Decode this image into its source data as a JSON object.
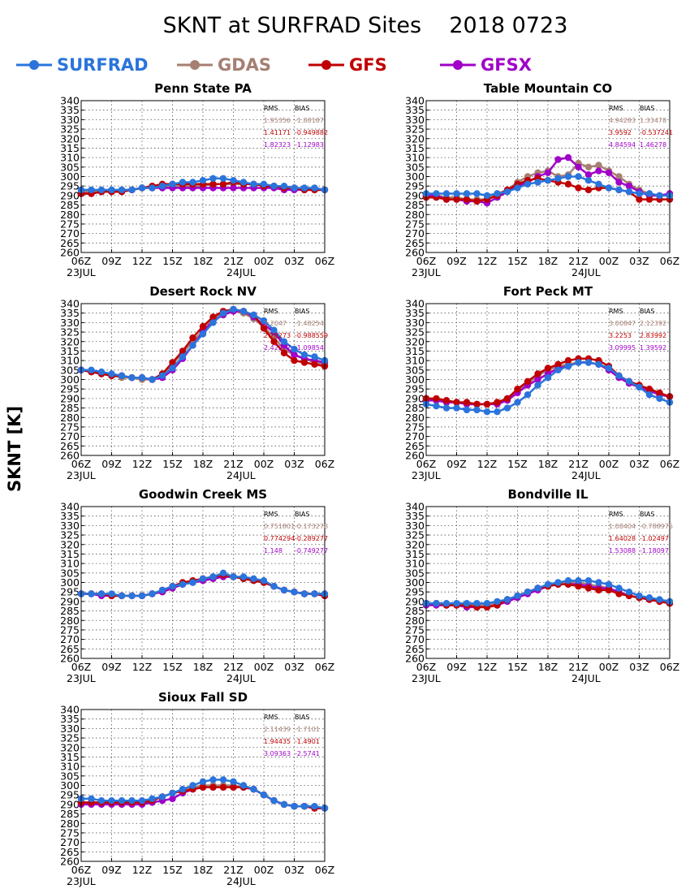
{
  "title": "SKNT at SURFRAD Sites    2018 0723",
  "ylabel": "SKNT [K]",
  "colors": {
    "SURFRAD": "#2a74dc",
    "GDAS": "#a67f72",
    "GFS": "#c00000",
    "GFSX": "#a000c8"
  },
  "legend": [
    "SURFRAD",
    "GDAS",
    "GFS",
    "GFSX"
  ],
  "stats_headers": {
    "rms": "RMS",
    "bias": "BIAS"
  },
  "chart_data": [
    {
      "type": "line",
      "title": "Penn State PA",
      "ylim": [
        260,
        340
      ],
      "x_ticks": [
        "06Z",
        "09Z",
        "12Z",
        "15Z",
        "18Z",
        "21Z",
        "00Z",
        "03Z",
        "06Z"
      ],
      "date_labels": [
        "23JUL",
        "24JUL"
      ],
      "series": [
        {
          "name": "SURFRAD",
          "values": [
            293,
            293,
            293,
            293,
            293,
            293,
            294,
            294,
            295,
            296,
            297,
            297,
            298,
            299,
            299,
            298,
            297,
            296,
            296,
            295,
            295,
            294,
            294,
            294,
            293
          ]
        },
        {
          "name": "GDAS",
          "values": [
            292,
            292,
            292,
            292,
            293,
            293,
            294,
            294,
            295,
            295,
            295,
            295,
            295,
            296,
            296,
            296,
            296,
            296,
            295,
            295,
            294,
            294,
            293,
            293,
            293
          ]
        },
        {
          "name": "GFS",
          "values": [
            291,
            291,
            292,
            292,
            292,
            293,
            294,
            295,
            296,
            296,
            296,
            296,
            296,
            296,
            296,
            297,
            296,
            296,
            295,
            295,
            294,
            294,
            293,
            293,
            293
          ]
        },
        {
          "name": "GFSX",
          "values": [
            291,
            291,
            292,
            292,
            292,
            293,
            294,
            294,
            294,
            294,
            294,
            294,
            294,
            294,
            294,
            294,
            294,
            294,
            294,
            294,
            293,
            293,
            293,
            293,
            293
          ]
        }
      ],
      "stats": [
        {
          "series": "GDAS",
          "rms": "1.95356",
          "bias": "-1.88187"
        },
        {
          "series": "GFS",
          "rms": "1.41171",
          "bias": "-0.949882"
        },
        {
          "series": "GFSX",
          "rms": "1.82323",
          "bias": "-1.12983"
        }
      ]
    },
    {
      "type": "line",
      "title": "Table Mountain CO",
      "ylim": [
        260,
        340
      ],
      "x_ticks": [
        "06Z",
        "09Z",
        "12Z",
        "15Z",
        "18Z",
        "21Z",
        "00Z",
        "03Z",
        "06Z"
      ],
      "date_labels": [
        "23JUL",
        "24JUL"
      ],
      "series": [
        {
          "name": "SURFRAD",
          "values": [
            291,
            291,
            291,
            291,
            291,
            291,
            290,
            291,
            292,
            294,
            296,
            297,
            298,
            299,
            300,
            300,
            298,
            296,
            294,
            293,
            292,
            291,
            291,
            290,
            290
          ]
        },
        {
          "name": "GDAS",
          "values": [
            290,
            290,
            289,
            289,
            288,
            288,
            288,
            291,
            293,
            297,
            300,
            302,
            303,
            300,
            301,
            307,
            305,
            306,
            303,
            300,
            296,
            293,
            291,
            290,
            290
          ]
        },
        {
          "name": "GFS",
          "values": [
            289,
            289,
            288,
            288,
            288,
            287,
            288,
            290,
            293,
            296,
            298,
            299,
            298,
            297,
            296,
            294,
            293,
            294,
            294,
            293,
            292,
            288,
            288,
            288,
            288
          ]
        },
        {
          "name": "GFSX",
          "values": [
            290,
            290,
            288,
            288,
            287,
            287,
            286,
            289,
            292,
            295,
            297,
            300,
            302,
            309,
            310,
            305,
            301,
            303,
            302,
            297,
            295,
            292,
            290,
            290,
            291
          ]
        }
      ],
      "stats": [
        {
          "series": "GDAS",
          "rms": "4.94283",
          "bias": "1.33478"
        },
        {
          "series": "GFS",
          "rms": "3.9592",
          "bias": "-0.537241"
        },
        {
          "series": "GFSX",
          "rms": "4.84594",
          "bias": "1.46278"
        }
      ]
    },
    {
      "type": "line",
      "title": "Desert Rock NV",
      "ylim": [
        260,
        340
      ],
      "x_ticks": [
        "06Z",
        "09Z",
        "12Z",
        "15Z",
        "18Z",
        "21Z",
        "00Z",
        "03Z",
        "06Z"
      ],
      "date_labels": [
        "23JUL",
        "24JUL"
      ],
      "series": [
        {
          "name": "SURFRAD",
          "values": [
            305,
            305,
            304,
            303,
            302,
            301,
            301,
            300,
            302,
            306,
            312,
            318,
            324,
            330,
            335,
            337,
            336,
            334,
            331,
            326,
            320,
            316,
            313,
            312,
            310
          ]
        },
        {
          "name": "GDAS",
          "values": [
            305,
            304,
            303,
            302,
            301,
            301,
            300,
            300,
            302,
            308,
            314,
            320,
            326,
            332,
            335,
            336,
            335,
            332,
            328,
            322,
            316,
            313,
            311,
            309,
            308
          ]
        },
        {
          "name": "GFS",
          "values": [
            305,
            304,
            303,
            302,
            302,
            301,
            301,
            300,
            303,
            309,
            315,
            322,
            328,
            333,
            336,
            337,
            336,
            334,
            327,
            320,
            314,
            310,
            309,
            308,
            307
          ]
        },
        {
          "name": "GFSX",
          "values": [
            305,
            304,
            303,
            302,
            302,
            301,
            301,
            300,
            301,
            305,
            311,
            318,
            325,
            331,
            334,
            336,
            336,
            333,
            329,
            325,
            318,
            313,
            311,
            310,
            309
          ]
        }
      ],
      "stats": [
        {
          "series": "GDAS",
          "rms": "2.2047",
          "bias": "-1.48254"
        },
        {
          "series": "GFS",
          "rms": "2.28273",
          "bias": "-0.988559"
        },
        {
          "series": "GFSX",
          "rms": "2.42277",
          "bias": "-1.09854"
        }
      ]
    },
    {
      "type": "line",
      "title": "Fort Peck MT",
      "ylim": [
        260,
        340
      ],
      "x_ticks": [
        "06Z",
        "09Z",
        "12Z",
        "15Z",
        "18Z",
        "21Z",
        "00Z",
        "03Z",
        "06Z"
      ],
      "date_labels": [
        "23JUL",
        "24JUL"
      ],
      "series": [
        {
          "name": "SURFRAD",
          "values": [
            287,
            286,
            285,
            285,
            284,
            284,
            283,
            283,
            285,
            288,
            292,
            297,
            301,
            305,
            307,
            309,
            309,
            308,
            306,
            302,
            299,
            296,
            292,
            290,
            288
          ]
        },
        {
          "name": "GDAS",
          "values": [
            290,
            289,
            288,
            288,
            287,
            287,
            287,
            288,
            290,
            294,
            298,
            302,
            305,
            307,
            308,
            309,
            309,
            308,
            305,
            302,
            299,
            297,
            294,
            292,
            291
          ]
        },
        {
          "name": "GFS",
          "values": [
            290,
            290,
            289,
            288,
            288,
            287,
            287,
            288,
            290,
            295,
            299,
            303,
            306,
            308,
            310,
            311,
            311,
            310,
            307,
            302,
            299,
            297,
            295,
            293,
            291
          ]
        },
        {
          "name": "GFSX",
          "values": [
            289,
            289,
            288,
            288,
            287,
            287,
            287,
            287,
            289,
            293,
            297,
            300,
            303,
            306,
            307,
            309,
            309,
            308,
            305,
            301,
            298,
            296,
            294,
            292,
            291
          ]
        }
      ],
      "stats": [
        {
          "series": "GDAS",
          "rms": "3.00847",
          "bias": "2.12392"
        },
        {
          "series": "GFS",
          "rms": "3.2253",
          "bias": "2.83992"
        },
        {
          "series": "GFSX",
          "rms": "3.09995",
          "bias": "1.39592"
        }
      ]
    },
    {
      "type": "line",
      "title": "Goodwin Creek MS",
      "ylim": [
        260,
        340
      ],
      "x_ticks": [
        "06Z",
        "09Z",
        "12Z",
        "15Z",
        "18Z",
        "21Z",
        "00Z",
        "03Z",
        "06Z"
      ],
      "date_labels": [
        "23JUL",
        "24JUL"
      ],
      "series": [
        {
          "name": "SURFRAD",
          "values": [
            294,
            294,
            294,
            294,
            293,
            293,
            293,
            294,
            296,
            298,
            299,
            300,
            302,
            303,
            305,
            303,
            303,
            302,
            301,
            298,
            296,
            295,
            294,
            294,
            294
          ]
        },
        {
          "name": "GDAS",
          "values": [
            294,
            294,
            294,
            293,
            293,
            293,
            293,
            294,
            295,
            297,
            299,
            300,
            301,
            302,
            303,
            303,
            302,
            301,
            300,
            298,
            296,
            295,
            294,
            294,
            294
          ]
        },
        {
          "name": "GFS",
          "values": [
            294,
            294,
            294,
            293,
            293,
            293,
            293,
            294,
            296,
            298,
            300,
            301,
            302,
            303,
            304,
            303,
            302,
            301,
            300,
            298,
            296,
            295,
            294,
            294,
            293
          ]
        },
        {
          "name": "GFSX",
          "values": [
            294,
            294,
            293,
            293,
            293,
            293,
            293,
            294,
            295,
            297,
            299,
            300,
            301,
            302,
            303,
            303,
            302,
            301,
            300,
            298,
            296,
            295,
            294,
            294,
            293
          ]
        }
      ],
      "stats": [
        {
          "series": "GDAS",
          "rms": "0.751801",
          "bias": "-0.173278"
        },
        {
          "series": "GFS",
          "rms": "0.774294",
          "bias": "-0.289277"
        },
        {
          "series": "GFSX",
          "rms": "1.148",
          "bias": "-0.749277"
        }
      ]
    },
    {
      "type": "line",
      "title": "Bondville IL",
      "ylim": [
        260,
        340
      ],
      "x_ticks": [
        "06Z",
        "09Z",
        "12Z",
        "15Z",
        "18Z",
        "21Z",
        "00Z",
        "03Z",
        "06Z"
      ],
      "date_labels": [
        "23JUL",
        "24JUL"
      ],
      "series": [
        {
          "name": "SURFRAD",
          "values": [
            289,
            289,
            289,
            289,
            289,
            289,
            289,
            290,
            291,
            293,
            295,
            297,
            299,
            300,
            301,
            301,
            301,
            300,
            299,
            297,
            295,
            293,
            292,
            291,
            290
          ]
        },
        {
          "name": "GDAS",
          "values": [
            289,
            289,
            288,
            288,
            288,
            288,
            288,
            289,
            291,
            293,
            295,
            297,
            298,
            299,
            300,
            300,
            299,
            298,
            297,
            295,
            293,
            292,
            291,
            290,
            289
          ]
        },
        {
          "name": "GFS",
          "values": [
            289,
            289,
            288,
            288,
            288,
            287,
            287,
            288,
            291,
            293,
            295,
            297,
            298,
            299,
            299,
            298,
            297,
            296,
            296,
            294,
            293,
            292,
            291,
            290,
            289
          ]
        },
        {
          "name": "GFSX",
          "values": [
            288,
            288,
            288,
            288,
            287,
            287,
            287,
            288,
            290,
            292,
            294,
            296,
            298,
            299,
            299,
            299,
            298,
            297,
            297,
            295,
            293,
            292,
            291,
            290,
            289
          ]
        }
      ],
      "stats": [
        {
          "series": "GDAS",
          "rms": "1.08404",
          "bias": "-0.788975"
        },
        {
          "series": "GFS",
          "rms": "1.64028",
          "bias": "-1.02497"
        },
        {
          "series": "GFSX",
          "rms": "1.53088",
          "bias": "-1.18097"
        }
      ]
    },
    {
      "type": "line",
      "title": "Sioux Fall SD",
      "ylim": [
        260,
        340
      ],
      "x_ticks": [
        "06Z",
        "09Z",
        "12Z",
        "15Z",
        "18Z",
        "21Z",
        "00Z",
        "03Z",
        "06Z"
      ],
      "date_labels": [
        "23JUL",
        "24JUL"
      ],
      "series": [
        {
          "name": "SURFRAD",
          "values": [
            293,
            293,
            292,
            292,
            292,
            292,
            292,
            293,
            294,
            296,
            298,
            300,
            302,
            303,
            303,
            302,
            300,
            298,
            295,
            292,
            290,
            289,
            289,
            289,
            288
          ]
        },
        {
          "name": "GDAS",
          "values": [
            291,
            291,
            291,
            291,
            291,
            291,
            291,
            292,
            294,
            296,
            298,
            299,
            300,
            300,
            300,
            300,
            299,
            298,
            295,
            292,
            290,
            289,
            289,
            288,
            288
          ]
        },
        {
          "name": "GFS",
          "values": [
            291,
            291,
            291,
            291,
            291,
            291,
            291,
            292,
            294,
            296,
            297,
            298,
            299,
            299,
            299,
            299,
            299,
            298,
            295,
            292,
            290,
            289,
            289,
            288,
            288
          ]
        },
        {
          "name": "GFSX",
          "values": [
            290,
            290,
            290,
            290,
            290,
            290,
            290,
            291,
            292,
            293,
            296,
            298,
            299,
            299,
            299,
            299,
            299,
            298,
            295,
            292,
            290,
            289,
            289,
            288,
            288
          ]
        }
      ],
      "stats": [
        {
          "series": "GDAS",
          "rms": "2.11439",
          "bias": "-1.7101"
        },
        {
          "series": "GFS",
          "rms": "1.94435",
          "bias": "-1.4901"
        },
        {
          "series": "GFSX",
          "rms": "3.09363",
          "bias": "-2.5741"
        }
      ]
    }
  ]
}
